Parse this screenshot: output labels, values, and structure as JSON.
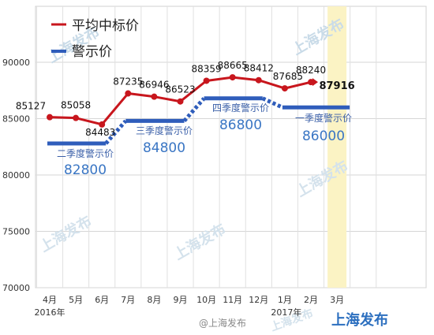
{
  "chart_data": {
    "type": "line",
    "categories": [
      "4月",
      "5月",
      "6月",
      "7月",
      "8月",
      "9月",
      "10月",
      "11月",
      "12月",
      "1月",
      "2月",
      "3月"
    ],
    "year_labels": [
      "2016年",
      "2017年"
    ],
    "ylim": [
      70000,
      90000
    ],
    "yticks": [
      70000,
      75000,
      80000,
      85000,
      90000
    ],
    "grid": true,
    "legend_position": "top-left",
    "series": [
      {
        "name": "平均中标价",
        "color": "#c8161d",
        "values": [
          85127,
          85058,
          84483,
          87235,
          86946,
          86523,
          88359,
          88665,
          88412,
          87685,
          88240,
          null
        ],
        "point_labels": [
          "85127",
          "85058",
          "84483",
          "87235",
          "86946",
          "86523",
          "88359",
          "88665",
          "88412",
          "87685",
          "88240",
          ""
        ],
        "forecast_label": "87916"
      },
      {
        "name": "警示价",
        "color": "#2f5dbb",
        "segments": [
          {
            "label": "二季度警示价",
            "value": 82800,
            "value_label": "82800",
            "start": 0,
            "end": 2
          },
          {
            "label": "三季度警示价",
            "value": 84800,
            "value_label": "84800",
            "start": 3,
            "end": 5
          },
          {
            "label": "四季度警示价",
            "value": 86800,
            "value_label": "86800",
            "start": 6,
            "end": 8
          },
          {
            "label": "一季度警示价",
            "value": 86000,
            "value_label": "86000",
            "start": 9,
            "end": 11
          }
        ]
      }
    ]
  },
  "watermark": {
    "brand": "上海发布",
    "weibo": "@上海发布"
  }
}
